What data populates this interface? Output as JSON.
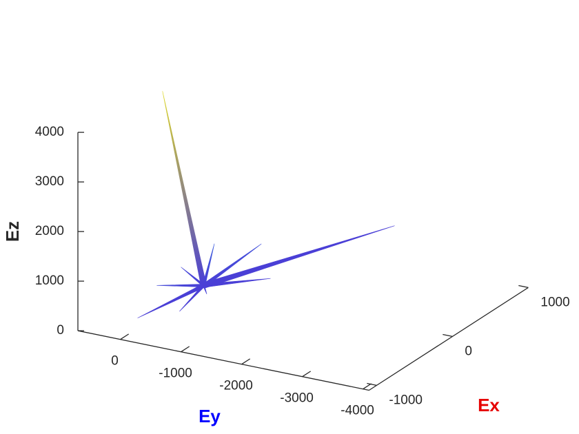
{
  "chart_data": {
    "type": "quiver3",
    "xlabel": "Ex",
    "ylabel": "Ey",
    "zlabel": "Ez",
    "xlabel_color": "#e60000",
    "ylabel_color": "#0000ff",
    "zlabel_color": "#262626",
    "xlim": [
      -1100,
      1000
    ],
    "ylim": [
      -4100,
      700
    ],
    "zlim": [
      0,
      4000
    ],
    "xticks": [
      -1000,
      0,
      1000
    ],
    "yticks": [
      0,
      -1000,
      -2000,
      -3000,
      -4000
    ],
    "zticks": [
      0,
      1000,
      2000,
      3000,
      4000
    ],
    "origin": [
      0,
      0,
      0
    ],
    "rays": {
      "ex": [
        0,
        1535,
        -713,
        600,
        300,
        -300,
        400,
        -200,
        200,
        -400,
        100
      ],
      "ey": [
        680,
        -1227,
        200,
        -200,
        200,
        400,
        -600,
        -300,
        300,
        -100,
        500
      ],
      "ez": [
        3750,
        0,
        0,
        300,
        500,
        200,
        -100,
        100,
        -150,
        -100,
        150
      ]
    }
  }
}
